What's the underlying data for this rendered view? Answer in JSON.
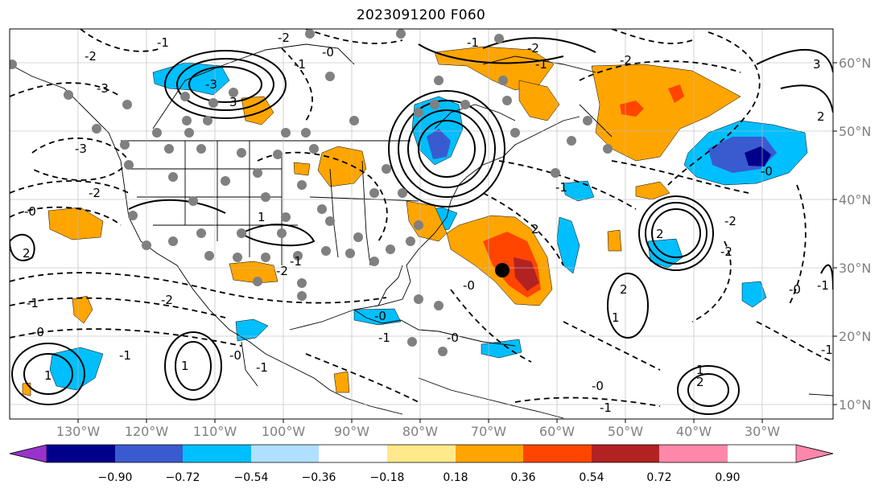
{
  "title": "2023091200 F060",
  "lon_labels": [
    "130°W",
    "120°W",
    "110°W",
    "100°W",
    "90°W",
    "80°W",
    "70°W",
    "60°W",
    "50°W",
    "40°W",
    "30°W"
  ],
  "lat_labels": [
    "60°N",
    "50°N",
    "40°N",
    "30°N",
    "20°N",
    "10°N"
  ],
  "colorbar": {
    "labels": [
      "−0.90",
      "−0.72",
      "−0.54",
      "−0.36",
      "−0.18",
      "0.18",
      "0.36",
      "0.54",
      "0.72",
      "0.90"
    ],
    "colors": [
      "#9932cc",
      "#00008b",
      "#3a5bd0",
      "#00bfff",
      "#b0e0ff",
      "#ffffff",
      "#ffe98a",
      "#ffa500",
      "#ff4500",
      "#b22222",
      "#ff88aa"
    ]
  },
  "contour_labels": [
    "-2",
    "-1",
    "-1",
    "-2",
    "-3",
    "3",
    "-3",
    "3",
    "-2",
    "-2",
    "-1",
    "2",
    "-2",
    "-0",
    "-1",
    "-0",
    "2",
    "-1",
    "-0",
    "-1",
    "-0",
    "-0",
    "-1",
    "-2",
    "-1",
    "-0",
    "1",
    "-2",
    "2",
    "-1",
    "-3",
    "1",
    "-2",
    "1",
    "1",
    "2",
    "1",
    "2",
    "-1",
    "-0",
    "-1",
    "2",
    "-1",
    "-0",
    "-0",
    "-1",
    "-0",
    "-2"
  ]
}
